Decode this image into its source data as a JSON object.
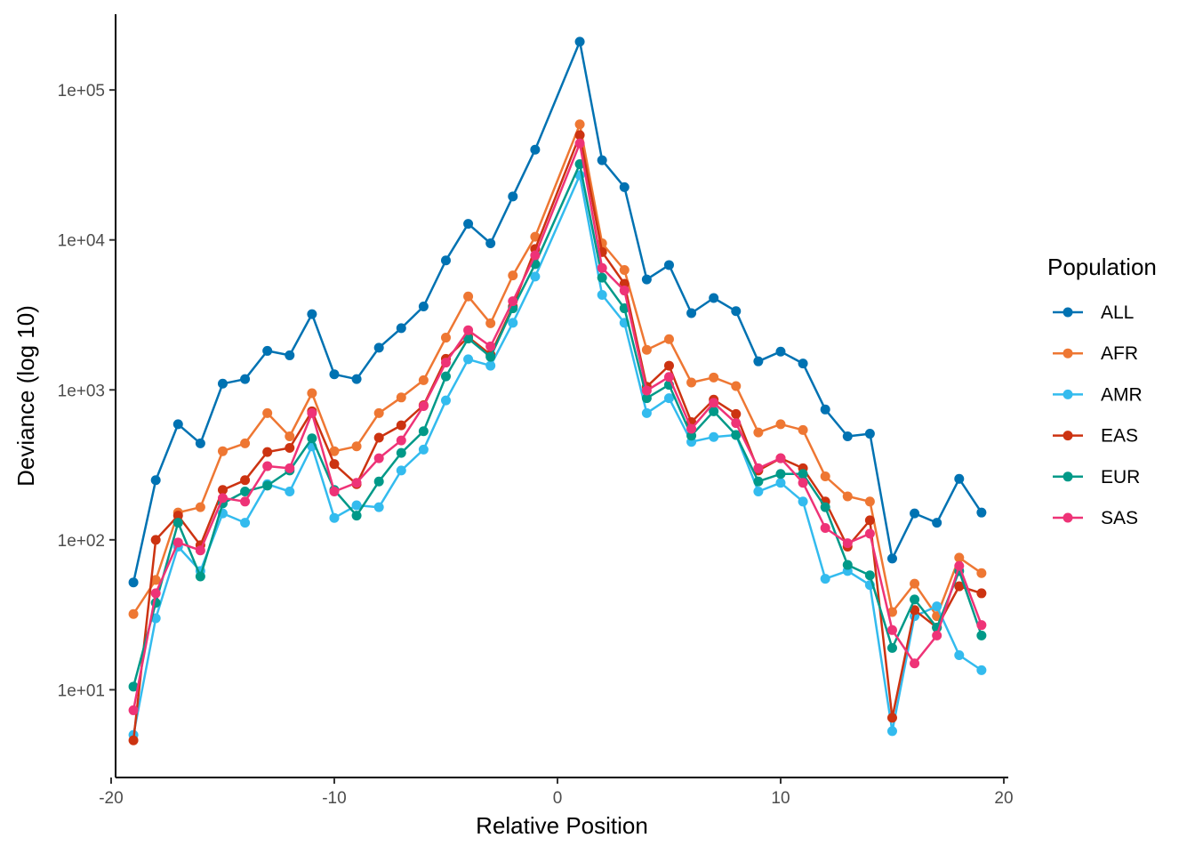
{
  "chart_data": {
    "type": "line",
    "xlabel": "Relative Position",
    "ylabel": "Deviance (log 10)",
    "xlim": [
      -19.8,
      20.2
    ],
    "ylim": [
      2.6,
      320000
    ],
    "yscale": "log10",
    "x_ticks": [
      -20,
      -10,
      0,
      10,
      20
    ],
    "x_tick_labels": [
      "-20",
      "-10",
      "0",
      "10",
      "20"
    ],
    "y_ticks": [
      10,
      100,
      1000,
      10000,
      100000
    ],
    "y_tick_labels": [
      "1e+01",
      "1e+02",
      "1e+03",
      "1e+04",
      "1e+05"
    ],
    "grid": false,
    "legend": {
      "title": "Population",
      "position": "right"
    },
    "x": [
      -19,
      -18,
      -17,
      -16,
      -15,
      -14,
      -13,
      -12,
      -11,
      -10,
      -9,
      -8,
      -7,
      -6,
      -5,
      -4,
      -3,
      -2,
      -1,
      1,
      2,
      3,
      4,
      5,
      6,
      7,
      8,
      9,
      10,
      11,
      12,
      13,
      14,
      15,
      16,
      17,
      18,
      19
    ],
    "series": [
      {
        "name": "ALL",
        "color": "#0072B2",
        "values": [
          52,
          250,
          590,
          440,
          1100,
          1180,
          1820,
          1700,
          3200,
          1270,
          1180,
          1910,
          2580,
          3600,
          7300,
          12800,
          9500,
          19500,
          40000,
          210000,
          34000,
          22500,
          5450,
          6800,
          3250,
          4100,
          3350,
          1550,
          1800,
          1500,
          740,
          490,
          510,
          75,
          150,
          130,
          255,
          152
        ]
      },
      {
        "name": "AFR",
        "color": "#EE7733",
        "values": [
          32,
          54,
          152,
          165,
          390,
          440,
          700,
          490,
          950,
          390,
          420,
          700,
          890,
          1160,
          2230,
          4200,
          2780,
          5800,
          10500,
          59000,
          9500,
          6300,
          1850,
          2180,
          1120,
          1210,
          1060,
          520,
          590,
          540,
          265,
          195,
          180,
          33,
          51,
          31,
          76,
          60
        ]
      },
      {
        "name": "AMR",
        "color": "#33BBEE",
        "values": [
          5,
          30,
          90,
          62,
          150,
          130,
          235,
          210,
          420,
          140,
          170,
          165,
          290,
          400,
          850,
          1600,
          1450,
          2800,
          5700,
          27000,
          4300,
          2800,
          700,
          880,
          450,
          485,
          500,
          210,
          240,
          180,
          55,
          62,
          50,
          5.3,
          31,
          36,
          17,
          13.5
        ]
      },
      {
        "name": "EAS",
        "color": "#CC3311",
        "values": [
          4.6,
          100,
          145,
          92,
          215,
          250,
          385,
          410,
          720,
          320,
          235,
          480,
          580,
          790,
          1610,
          2250,
          1720,
          3600,
          8700,
          50000,
          8300,
          5100,
          1050,
          1450,
          610,
          860,
          690,
          290,
          350,
          300,
          180,
          90,
          135,
          6.5,
          34,
          26,
          49,
          44
        ]
      },
      {
        "name": "EUR",
        "color": "#009988",
        "values": [
          10.5,
          38,
          130,
          57,
          175,
          210,
          230,
          290,
          475,
          215,
          145,
          245,
          380,
          530,
          1230,
          2200,
          1660,
          3500,
          6900,
          32000,
          5600,
          3500,
          880,
          1080,
          495,
          720,
          500,
          245,
          275,
          275,
          165,
          68,
          58,
          19,
          40,
          26,
          62,
          23
        ]
      },
      {
        "name": "SAS",
        "color": "#EE3377",
        "values": [
          7.3,
          44,
          96,
          85,
          190,
          180,
          310,
          300,
          700,
          210,
          240,
          350,
          460,
          780,
          1520,
          2500,
          1950,
          3900,
          7900,
          44000,
          6500,
          4600,
          990,
          1220,
          550,
          820,
          600,
          300,
          350,
          240,
          120,
          95,
          110,
          25,
          15,
          23,
          67,
          27
        ]
      }
    ]
  }
}
